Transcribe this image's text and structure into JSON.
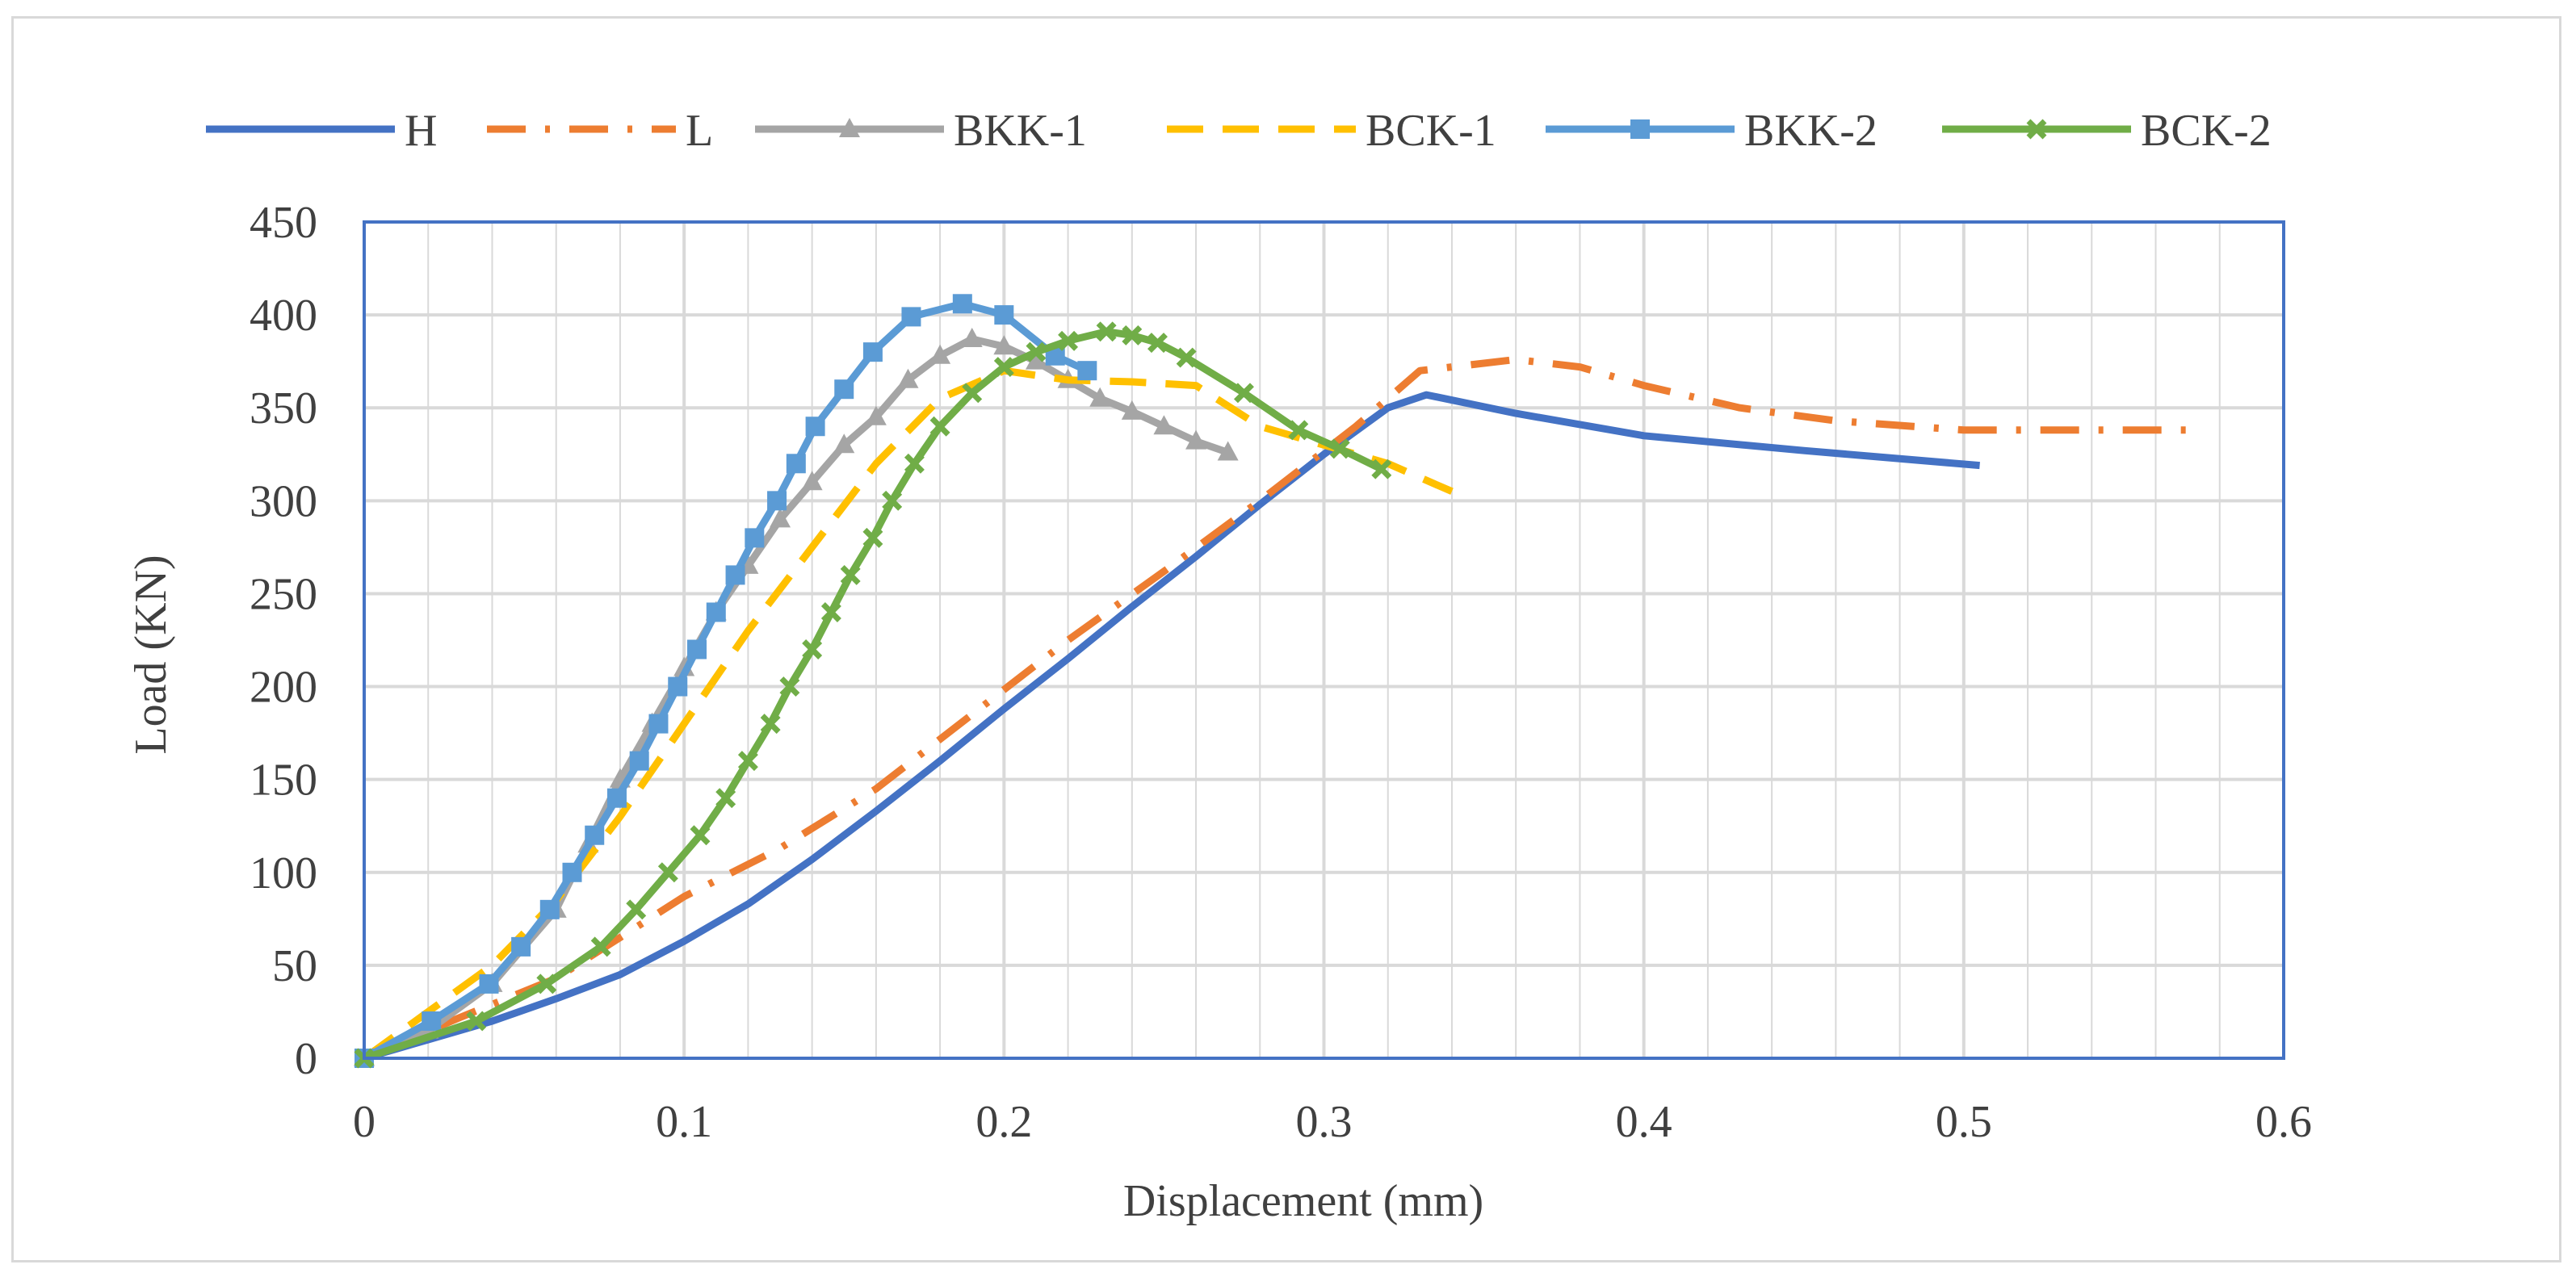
{
  "chart_data": {
    "type": "line",
    "title": "",
    "xlabel": "Displacement (mm)",
    "ylabel": "Load (KN)",
    "xlim": [
      0,
      0.6
    ],
    "ylim": [
      0,
      450
    ],
    "xticks": [
      0,
      0.1,
      0.2,
      0.3,
      0.4,
      0.5,
      0.6
    ],
    "xtick_labels": [
      "0",
      "0.1",
      "0.2",
      "0.3",
      "0.4",
      "0.5",
      "0.6"
    ],
    "yticks": [
      0,
      50,
      100,
      150,
      200,
      250,
      300,
      350,
      400,
      450
    ],
    "ytick_labels": [
      "0",
      "50",
      "100",
      "150",
      "200",
      "250",
      "300",
      "350",
      "400",
      "450"
    ],
    "minor_x_step": 0.02,
    "legend_position": "top",
    "grid": true,
    "colors": {
      "axis_border": "#4472C4",
      "gridline": "#d9d9d9",
      "text": "#404040"
    },
    "series": [
      {
        "name": "H",
        "color": "#4472C4",
        "dash": "solid",
        "marker": "none",
        "x": [
          0,
          0.02,
          0.04,
          0.06,
          0.08,
          0.1,
          0.12,
          0.14,
          0.16,
          0.18,
          0.2,
          0.22,
          0.24,
          0.26,
          0.28,
          0.3,
          0.32,
          0.332,
          0.36,
          0.4,
          0.45,
          0.505
        ],
        "y": [
          0,
          10,
          20,
          32,
          45,
          63,
          83,
          107,
          133,
          160,
          188,
          215,
          243,
          270,
          298,
          325,
          350,
          357,
          347,
          335,
          327,
          319
        ]
      },
      {
        "name": "L",
        "color": "#ED7D31",
        "dash": "dashdot",
        "marker": "none",
        "x": [
          0,
          0.03,
          0.06,
          0.08,
          0.1,
          0.13,
          0.16,
          0.19,
          0.22,
          0.25,
          0.28,
          0.31,
          0.33,
          0.36,
          0.38,
          0.4,
          0.43,
          0.46,
          0.5,
          0.57
        ],
        "y": [
          0,
          22,
          43,
          65,
          87,
          113,
          145,
          185,
          225,
          262,
          300,
          340,
          370,
          376,
          372,
          362,
          350,
          343,
          338,
          338
        ]
      },
      {
        "name": "BKK-1",
        "color": "#A5A5A5",
        "dash": "solid",
        "marker": "triangle",
        "x": [
          0,
          0.02,
          0.04,
          0.06,
          0.07,
          0.08,
          0.09,
          0.1,
          0.11,
          0.12,
          0.13,
          0.14,
          0.15,
          0.16,
          0.17,
          0.18,
          0.19,
          0.2,
          0.21,
          0.22,
          0.23,
          0.24,
          0.25,
          0.26,
          0.27
        ],
        "y": [
          0,
          15,
          40,
          80,
          115,
          150,
          180,
          210,
          240,
          265,
          290,
          310,
          330,
          345,
          365,
          378,
          387,
          383,
          375,
          365,
          355,
          348,
          340,
          332,
          326
        ]
      },
      {
        "name": "BCK-1",
        "color": "#FFC000",
        "dash": "dashed",
        "marker": "none",
        "x": [
          0,
          0.02,
          0.04,
          0.06,
          0.08,
          0.1,
          0.12,
          0.14,
          0.16,
          0.18,
          0.2,
          0.22,
          0.24,
          0.26,
          0.28,
          0.3,
          0.32,
          0.34
        ],
        "y": [
          0,
          25,
          50,
          85,
          130,
          180,
          230,
          275,
          320,
          355,
          370,
          365,
          364,
          362,
          340,
          330,
          320,
          305
        ]
      },
      {
        "name": "BKK-2",
        "color": "#5B9BD5",
        "dash": "solid",
        "marker": "square",
        "x": [
          0,
          0.021,
          0.039,
          0.049,
          0.058,
          0.065,
          0.072,
          0.079,
          0.086,
          0.092,
          0.098,
          0.104,
          0.11,
          0.116,
          0.122,
          0.129,
          0.135,
          0.141,
          0.15,
          0.159,
          0.171,
          0.187,
          0.2,
          0.216,
          0.226
        ],
        "y": [
          0,
          20,
          40,
          60,
          80,
          100,
          120,
          140,
          160,
          180,
          200,
          220,
          240,
          260,
          280,
          300,
          320,
          340,
          360,
          380,
          399,
          406,
          400,
          378,
          370
        ]
      },
      {
        "name": "BCK-2",
        "color": "#70AD47",
        "dash": "solid",
        "marker": "x",
        "x": [
          0,
          0.035,
          0.057,
          0.074,
          0.085,
          0.095,
          0.105,
          0.113,
          0.12,
          0.127,
          0.133,
          0.14,
          0.146,
          0.152,
          0.159,
          0.165,
          0.172,
          0.18,
          0.19,
          0.2,
          0.21,
          0.22,
          0.232,
          0.24,
          0.248,
          0.257,
          0.275,
          0.292,
          0.305,
          0.318
        ],
        "y": [
          0,
          20,
          40,
          60,
          80,
          100,
          120,
          140,
          160,
          180,
          200,
          220,
          240,
          260,
          280,
          300,
          320,
          340,
          358,
          372,
          380,
          386,
          391,
          389,
          385,
          377,
          358,
          338,
          328,
          317
        ]
      }
    ]
  }
}
